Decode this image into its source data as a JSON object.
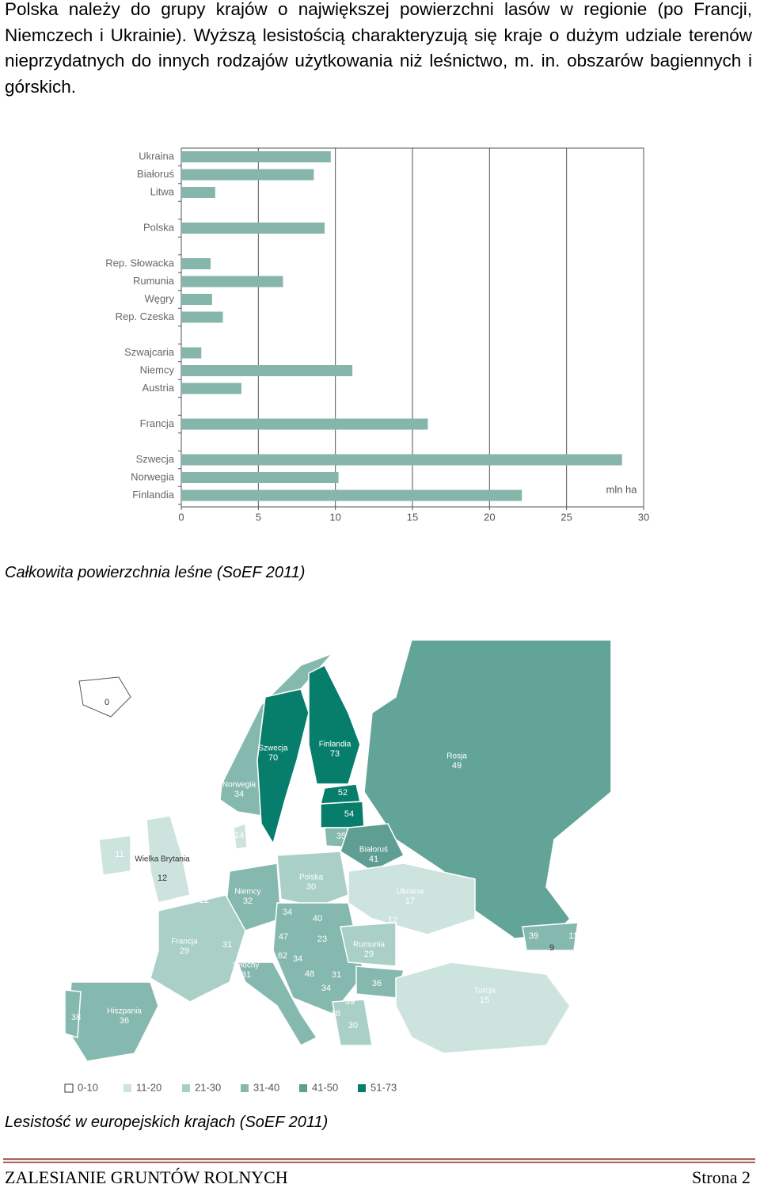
{
  "paragraph": "Polska należy do grupy krajów o największej powierzchni lasów w regionie (po Francji, Niemczech i Ukrainie). Wyższą lesistością charakteryzują się kraje o dużym udziale terenów nieprzydatnych do innych rodzajów użytkowania niż leśnictwo, m. in. obszarów bagiennych i górskich.",
  "chart_data": {
    "type": "bar",
    "orientation": "horizontal",
    "color": "#86b5ac",
    "categories": [
      "Ukraina",
      "Białoruś",
      "Litwa",
      null,
      "Polska",
      null,
      "Rep. Słowacka",
      "Rumunia",
      "Węgry",
      "Rep. Czeska",
      null,
      "Szwajcaria",
      "Niemcy",
      "Austria",
      null,
      "Francja",
      null,
      "Szwecja",
      "Norwegia",
      "Finlandia"
    ],
    "values": [
      9.7,
      8.6,
      2.2,
      null,
      9.3,
      null,
      1.9,
      6.6,
      2.0,
      2.7,
      null,
      1.3,
      11.1,
      3.9,
      null,
      16.0,
      null,
      28.6,
      10.2,
      22.1
    ],
    "xlim": [
      0,
      30
    ],
    "xticks": [
      0,
      5,
      10,
      15,
      20,
      25,
      30
    ],
    "grid": true,
    "annotation": "mln ha"
  },
  "caption1": "Całkowita powierzchnia leśne (SoEF 2011)",
  "map": {
    "labels": [
      {
        "value": 0
      },
      {
        "name": "Szwecja",
        "value": 70
      },
      {
        "name": "Finlandia",
        "value": 73
      },
      {
        "name": "Rosja",
        "value": 49
      },
      {
        "name": "Norwegia",
        "value": 34
      },
      {
        "value": 52
      },
      {
        "value": 54
      },
      {
        "value": 14
      },
      {
        "value": 35
      },
      {
        "name": "Białoruś",
        "value": 41
      },
      {
        "value": 11
      },
      {
        "name": "Wielka Brytania",
        "value": 12
      },
      {
        "value": 11
      },
      {
        "name": "Polska",
        "value": 30
      },
      {
        "name": "Ukraina",
        "value": 17
      },
      {
        "value": 22
      },
      {
        "name": "Niemcy",
        "value": 32
      },
      {
        "value": 34
      },
      {
        "value": 40
      },
      {
        "value": 12
      },
      {
        "value": 47
      },
      {
        "value": 23
      },
      {
        "name": "Francja",
        "value": 29
      },
      {
        "name": "Rumunia",
        "value": 29
      },
      {
        "value": 39
      },
      {
        "value": 11
      },
      {
        "value": 9
      },
      {
        "value": 31
      },
      {
        "value": 62
      },
      {
        "value": 34
      },
      {
        "name": "Włochy",
        "value": 31
      },
      {
        "value": 48
      },
      {
        "value": 31
      },
      {
        "value": 36
      },
      {
        "value": 34
      },
      {
        "name": "Turcja",
        "value": 15
      },
      {
        "value": 39
      },
      {
        "value": 38
      },
      {
        "name": "Hiszpania",
        "value": 36
      },
      {
        "value": 28
      },
      {
        "value": 30
      }
    ],
    "legend": [
      {
        "label": "0-10",
        "color": "#ffffff"
      },
      {
        "label": "11-20",
        "color": "#cde3de"
      },
      {
        "label": "21-30",
        "color": "#a9cfc7"
      },
      {
        "label": "31-40",
        "color": "#85b8ae"
      },
      {
        "label": "41-50",
        "color": "#5f9f93"
      },
      {
        "label": "51-73",
        "color": "#077e6c"
      }
    ]
  },
  "caption2": "Lesistość w europejskich krajach (SoEF 2011)",
  "footer": {
    "title": "ZALESIANIE GRUNTÓW ROLNYCH",
    "page": "Strona 2"
  }
}
